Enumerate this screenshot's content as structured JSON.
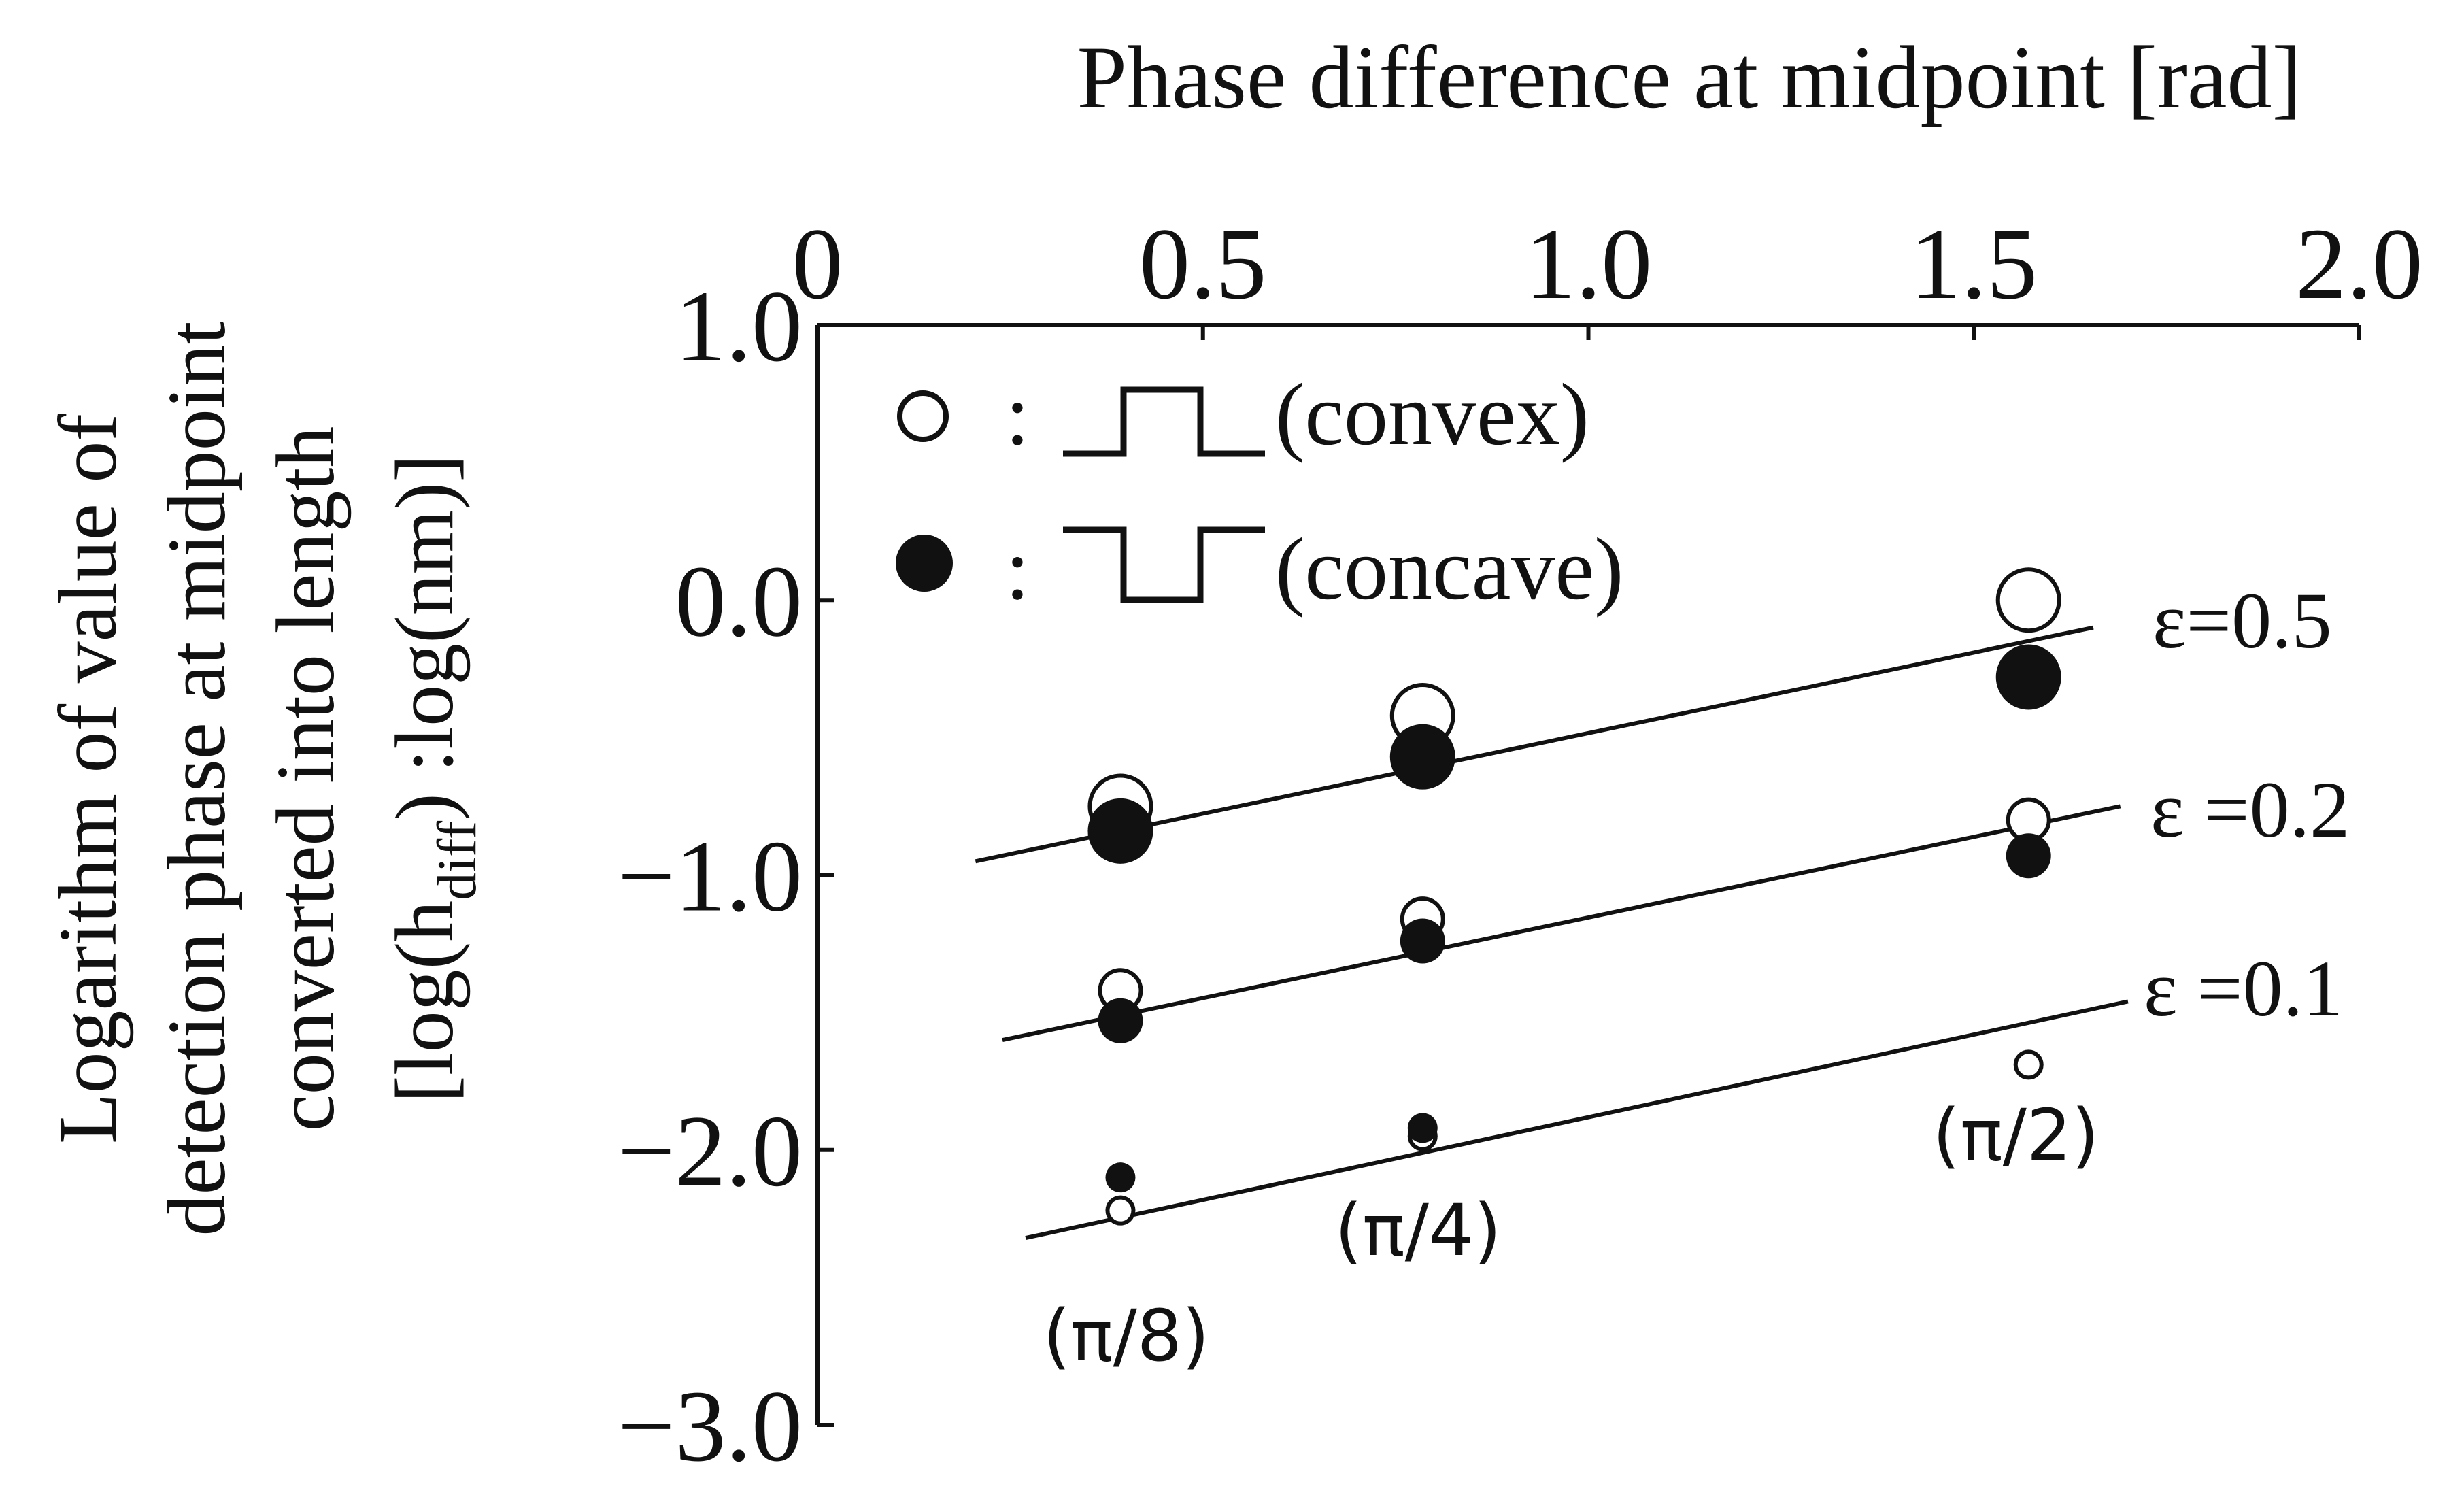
{
  "chart_data": {
    "type": "scatter",
    "top_axis": {
      "title": "Phase difference at midpoint [rad]",
      "ticks": [
        {
          "value": 0,
          "label": "0"
        },
        {
          "value": 0.5,
          "label": "0.5"
        },
        {
          "value": 1.0,
          "label": "1.0"
        },
        {
          "value": 1.5,
          "label": "1.5"
        },
        {
          "value": 2.0,
          "label": "2.0"
        }
      ],
      "range": [
        0,
        2.0
      ]
    },
    "y_axis": {
      "title_lines": [
        "Logarithm of value of",
        "detection phase at midpoint",
        "converted into length"
      ],
      "title_unit": {
        "prefix": "[log(h",
        "subscript": "diff",
        "suffix": ") :log(nm)]"
      },
      "ticks": [
        {
          "value": 1.0,
          "label": "1.0"
        },
        {
          "value": 0.0,
          "label": "0.0"
        },
        {
          "value": -1.0,
          "label": "−1.0"
        },
        {
          "value": -2.0,
          "label": "−2.0"
        },
        {
          "value": -3.0,
          "label": "−3.0"
        }
      ],
      "range": [
        -3.0,
        1.0
      ]
    },
    "legend": {
      "placement": "top-left",
      "items": [
        {
          "marker": "open-circle",
          "separator": ":",
          "symbol": "convex-step",
          "label": "(convex)"
        },
        {
          "marker": "filled-circle",
          "separator": ":",
          "symbol": "concave-step",
          "label": "(concave)"
        }
      ]
    },
    "series": [
      {
        "name": "convex",
        "epsilon": "0.5",
        "marker": "open",
        "size": "large",
        "x": [
          0.393,
          0.785,
          1.571
        ],
        "y": [
          -0.75,
          -0.42,
          0.0
        ]
      },
      {
        "name": "concave",
        "epsilon": "0.5",
        "marker": "filled",
        "size": "large",
        "x": [
          0.393,
          0.785,
          1.571
        ],
        "y": [
          -0.84,
          -0.57,
          -0.28
        ]
      },
      {
        "name": "convex",
        "epsilon": "0.2",
        "marker": "open",
        "size": "medium",
        "x": [
          0.393,
          0.785,
          1.571
        ],
        "y": [
          -1.42,
          -1.16,
          -0.8
        ]
      },
      {
        "name": "concave",
        "epsilon": "0.2",
        "marker": "filled",
        "size": "medium",
        "x": [
          0.393,
          0.785,
          1.571
        ],
        "y": [
          -1.53,
          -1.24,
          -0.93
        ]
      },
      {
        "name": "convex",
        "epsilon": "0.1",
        "marker": "open",
        "size": "small",
        "x": [
          0.393,
          0.785,
          1.571
        ],
        "y": [
          -2.22,
          -1.95,
          -1.69
        ]
      },
      {
        "name": "concave",
        "epsilon": "0.1",
        "marker": "filled",
        "size": "small",
        "x": [
          0.393,
          0.785
        ],
        "y": [
          -2.1,
          -1.92
        ]
      }
    ],
    "fit_lines": [
      {
        "epsilon": "0.5",
        "label": "ε=0.5",
        "x": [
          0.205,
          1.655
        ],
        "y": [
          -0.95,
          -0.1
        ]
      },
      {
        "epsilon": "0.2",
        "label": "ε =0.2",
        "x": [
          0.24,
          1.69
        ],
        "y": [
          -1.6,
          -0.75
        ]
      },
      {
        "epsilon": "0.1",
        "label": "ε =0.1",
        "x": [
          0.27,
          1.7
        ],
        "y": [
          -2.32,
          -1.46
        ]
      }
    ],
    "annotations": [
      {
        "text": "(π/8)",
        "x": 0.393,
        "y": -2.6
      },
      {
        "text": "(π/4)",
        "x": 0.785,
        "y": -2.38
      },
      {
        "text": "(π/2)",
        "x": 1.571,
        "y": -2.05
      }
    ]
  }
}
